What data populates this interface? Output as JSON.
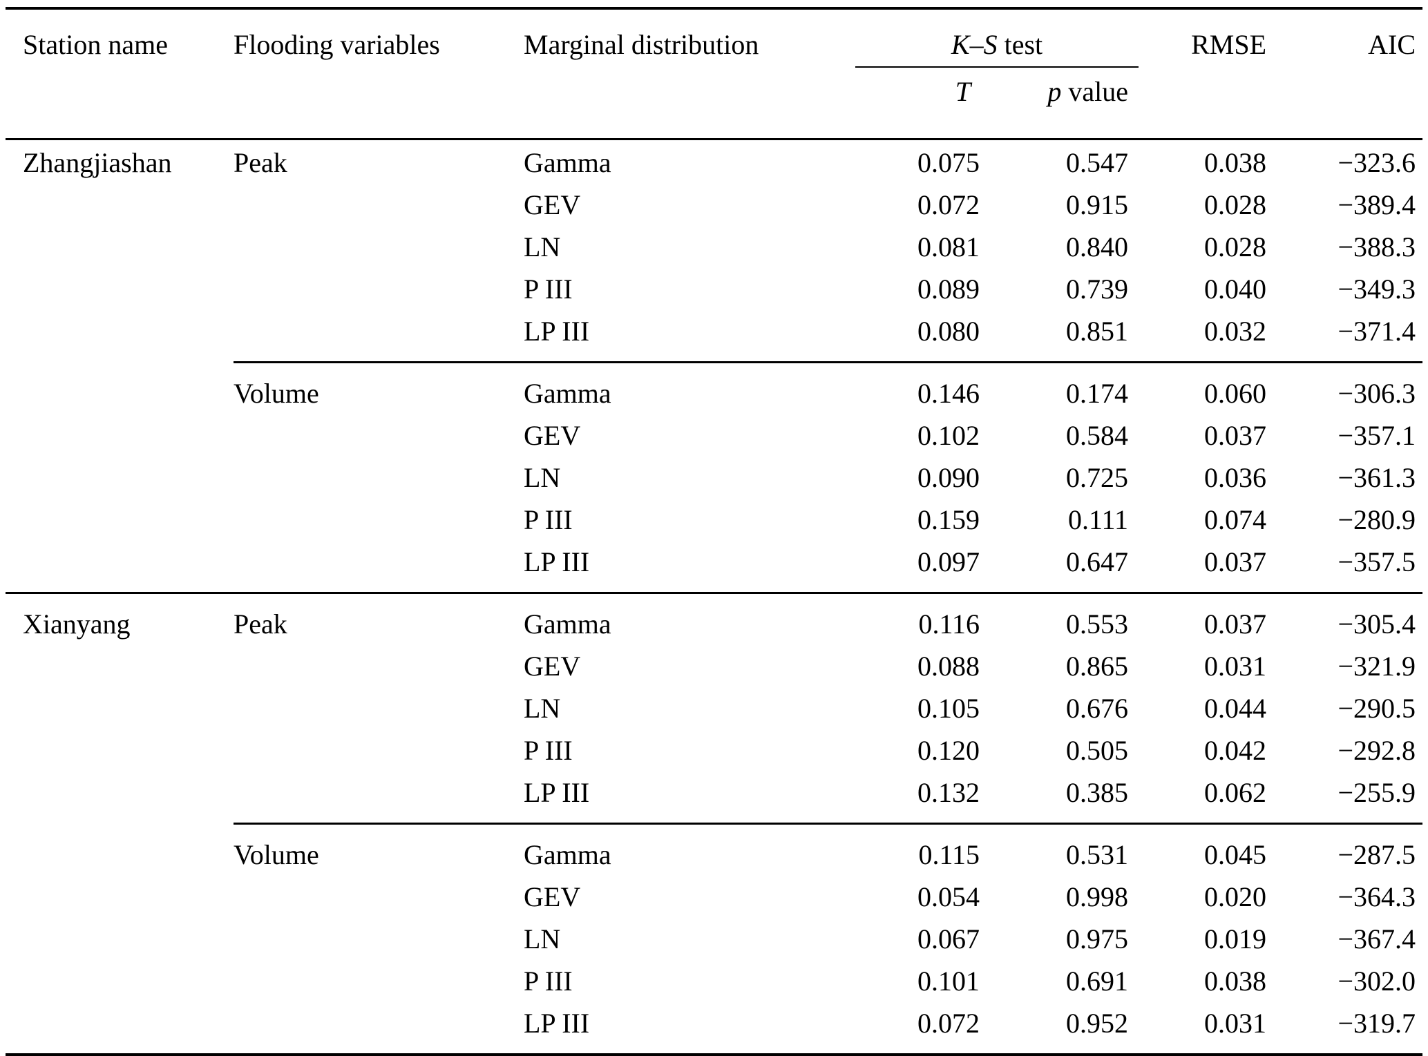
{
  "table": {
    "headers": {
      "station": "Station name",
      "flooding_variables": "Flooding variables",
      "marginal_distribution": "Marginal distribution",
      "ks_test": {
        "k": "K",
        "dash": "–",
        "s": "S",
        "suffix": " test"
      },
      "t": "T",
      "p_value": {
        "p": "p",
        "suffix": " value"
      },
      "rmse": "RMSE",
      "aic": "AIC"
    },
    "groups": [
      {
        "station": "Zhangjiashan",
        "blocks": [
          {
            "variable": "Peak",
            "rows": [
              {
                "distribution": "Gamma",
                "t": "0.075",
                "p": "0.547",
                "rmse": "0.038",
                "aic": "−323.6"
              },
              {
                "distribution": "GEV",
                "t": "0.072",
                "p": "0.915",
                "rmse": "0.028",
                "aic": "−389.4"
              },
              {
                "distribution": "LN",
                "t": "0.081",
                "p": "0.840",
                "rmse": "0.028",
                "aic": "−388.3"
              },
              {
                "distribution": "P III",
                "t": "0.089",
                "p": "0.739",
                "rmse": "0.040",
                "aic": "−349.3"
              },
              {
                "distribution": "LP III",
                "t": "0.080",
                "p": "0.851",
                "rmse": "0.032",
                "aic": "−371.4"
              }
            ]
          },
          {
            "variable": "Volume",
            "rows": [
              {
                "distribution": "Gamma",
                "t": "0.146",
                "p": "0.174",
                "rmse": "0.060",
                "aic": "−306.3"
              },
              {
                "distribution": "GEV",
                "t": "0.102",
                "p": "0.584",
                "rmse": "0.037",
                "aic": "−357.1"
              },
              {
                "distribution": "LN",
                "t": "0.090",
                "p": "0.725",
                "rmse": "0.036",
                "aic": "−361.3"
              },
              {
                "distribution": "P III",
                "t": "0.159",
                "p": "0.111",
                "rmse": "0.074",
                "aic": "−280.9"
              },
              {
                "distribution": "LP III",
                "t": "0.097",
                "p": "0.647",
                "rmse": "0.037",
                "aic": "−357.5"
              }
            ]
          }
        ]
      },
      {
        "station": "Xianyang",
        "blocks": [
          {
            "variable": "Peak",
            "rows": [
              {
                "distribution": "Gamma",
                "t": "0.116",
                "p": "0.553",
                "rmse": "0.037",
                "aic": "−305.4"
              },
              {
                "distribution": "GEV",
                "t": "0.088",
                "p": "0.865",
                "rmse": "0.031",
                "aic": "−321.9"
              },
              {
                "distribution": "LN",
                "t": "0.105",
                "p": "0.676",
                "rmse": "0.044",
                "aic": "−290.5"
              },
              {
                "distribution": "P III",
                "t": "0.120",
                "p": "0.505",
                "rmse": "0.042",
                "aic": "−292.8"
              },
              {
                "distribution": "LP III",
                "t": "0.132",
                "p": "0.385",
                "rmse": "0.062",
                "aic": "−255.9"
              }
            ]
          },
          {
            "variable": "Volume",
            "rows": [
              {
                "distribution": "Gamma",
                "t": "0.115",
                "p": "0.531",
                "rmse": "0.045",
                "aic": "−287.5"
              },
              {
                "distribution": "GEV",
                "t": "0.054",
                "p": "0.998",
                "rmse": "0.020",
                "aic": "−364.3"
              },
              {
                "distribution": "LN",
                "t": "0.067",
                "p": "0.975",
                "rmse": "0.019",
                "aic": "−367.4"
              },
              {
                "distribution": "P III",
                "t": "0.101",
                "p": "0.691",
                "rmse": "0.038",
                "aic": "−302.0"
              },
              {
                "distribution": "LP III",
                "t": "0.072",
                "p": "0.952",
                "rmse": "0.031",
                "aic": "−319.7"
              }
            ]
          }
        ]
      }
    ]
  }
}
